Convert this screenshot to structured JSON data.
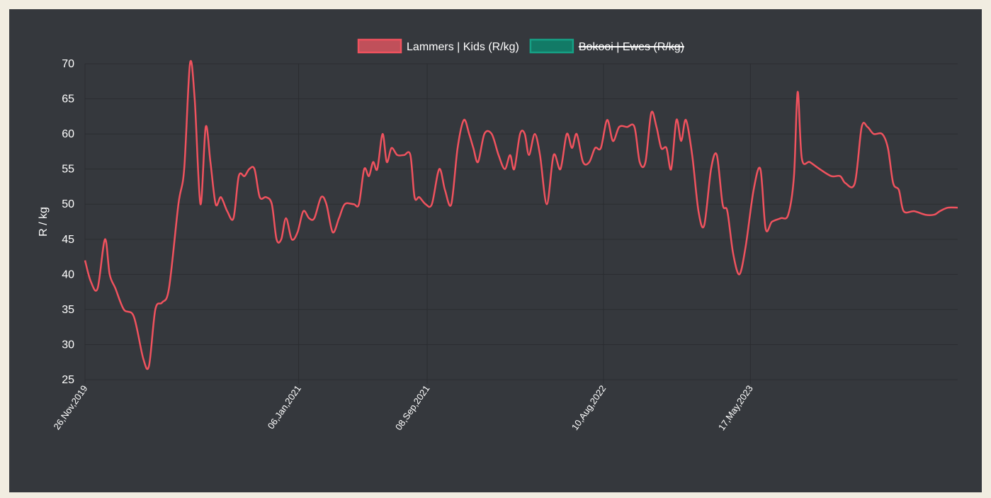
{
  "chart_data": {
    "type": "line",
    "ylabel": "R / kg",
    "xlabel": "",
    "ylim": [
      25,
      70
    ],
    "yticks": [
      25,
      30,
      35,
      40,
      45,
      50,
      55,
      60,
      65,
      70
    ],
    "xlim": [
      "2019-11-26",
      "2024-06-15"
    ],
    "xticks": [
      {
        "date": "2019-11-26",
        "label": "26,Nov,2019"
      },
      {
        "date": "2021-01-06",
        "label": "06,Jan,2021"
      },
      {
        "date": "2021-09-08",
        "label": "08,Sep,2021"
      },
      {
        "date": "2022-08-10",
        "label": "10,Aug,2022"
      },
      {
        "date": "2023-05-17",
        "label": "17,May,2023"
      }
    ],
    "grid": true,
    "legend_position": "top",
    "series": [
      {
        "name": "Lammers | Kids (R/kg)",
        "color": "#f0525e",
        "fill": "#c0505a",
        "hidden": false,
        "points": [
          [
            "2019-11-26",
            42
          ],
          [
            "2019-12-07",
            39
          ],
          [
            "2019-12-20",
            38
          ],
          [
            "2020-01-03",
            45
          ],
          [
            "2020-01-12",
            40
          ],
          [
            "2020-01-23",
            38
          ],
          [
            "2020-02-08",
            35
          ],
          [
            "2020-02-27",
            34
          ],
          [
            "2020-03-16",
            28
          ],
          [
            "2020-03-27",
            27
          ],
          [
            "2020-04-08",
            35
          ],
          [
            "2020-04-21",
            36
          ],
          [
            "2020-05-04",
            38
          ],
          [
            "2020-05-22",
            50
          ],
          [
            "2020-06-02",
            55
          ],
          [
            "2020-06-13",
            70
          ],
          [
            "2020-06-22",
            65
          ],
          [
            "2020-07-03",
            50
          ],
          [
            "2020-07-13",
            61
          ],
          [
            "2020-07-22",
            56
          ],
          [
            "2020-08-01",
            50
          ],
          [
            "2020-08-11",
            51
          ],
          [
            "2020-08-23",
            49
          ],
          [
            "2020-09-04",
            48
          ],
          [
            "2020-09-14",
            54
          ],
          [
            "2020-09-25",
            54
          ],
          [
            "2020-10-04",
            55
          ],
          [
            "2020-10-14",
            55
          ],
          [
            "2020-10-24",
            51
          ],
          [
            "2020-11-05",
            51
          ],
          [
            "2020-11-16",
            50
          ],
          [
            "2020-11-25",
            45
          ],
          [
            "2020-12-04",
            45
          ],
          [
            "2020-12-13",
            48
          ],
          [
            "2020-12-24",
            45
          ],
          [
            "2021-01-04",
            46
          ],
          [
            "2021-01-15",
            49
          ],
          [
            "2021-01-26",
            48
          ],
          [
            "2021-02-05",
            48
          ],
          [
            "2021-02-18",
            51
          ],
          [
            "2021-02-28",
            50
          ],
          [
            "2021-03-12",
            46
          ],
          [
            "2021-03-24",
            48
          ],
          [
            "2021-04-04",
            50
          ],
          [
            "2021-04-21",
            50
          ],
          [
            "2021-05-01",
            50
          ],
          [
            "2021-05-11",
            55
          ],
          [
            "2021-05-20",
            54
          ],
          [
            "2021-05-28",
            56
          ],
          [
            "2021-06-05",
            55
          ],
          [
            "2021-06-15",
            60
          ],
          [
            "2021-06-23",
            56
          ],
          [
            "2021-07-02",
            58
          ],
          [
            "2021-07-13",
            57
          ],
          [
            "2021-07-26",
            57
          ],
          [
            "2021-08-07",
            57
          ],
          [
            "2021-08-15",
            51
          ],
          [
            "2021-08-24",
            51
          ],
          [
            "2021-09-05",
            50
          ],
          [
            "2021-09-17",
            50
          ],
          [
            "2021-10-01",
            55
          ],
          [
            "2021-10-12",
            52
          ],
          [
            "2021-10-24",
            50
          ],
          [
            "2021-11-05",
            58
          ],
          [
            "2021-11-17",
            62
          ],
          [
            "2021-11-27",
            60
          ],
          [
            "2021-12-05",
            58
          ],
          [
            "2021-12-14",
            56
          ],
          [
            "2021-12-26",
            60
          ],
          [
            "2022-01-09",
            60
          ],
          [
            "2022-01-22",
            57
          ],
          [
            "2022-02-03",
            55
          ],
          [
            "2022-02-13",
            57
          ],
          [
            "2022-02-21",
            55
          ],
          [
            "2022-03-04",
            60
          ],
          [
            "2022-03-13",
            60
          ],
          [
            "2022-03-21",
            57
          ],
          [
            "2022-04-01",
            60
          ],
          [
            "2022-04-11",
            57
          ],
          [
            "2022-04-24",
            50
          ],
          [
            "2022-05-07",
            57
          ],
          [
            "2022-05-20",
            55
          ],
          [
            "2022-06-01",
            60
          ],
          [
            "2022-06-11",
            58
          ],
          [
            "2022-06-20",
            60
          ],
          [
            "2022-07-02",
            56
          ],
          [
            "2022-07-14",
            56
          ],
          [
            "2022-07-25",
            58
          ],
          [
            "2022-08-05",
            58
          ],
          [
            "2022-08-17",
            62
          ],
          [
            "2022-08-28",
            59
          ],
          [
            "2022-09-09",
            61
          ],
          [
            "2022-09-24",
            61
          ],
          [
            "2022-10-08",
            61
          ],
          [
            "2022-10-18",
            56
          ],
          [
            "2022-10-29",
            56
          ],
          [
            "2022-11-09",
            63
          ],
          [
            "2022-11-19",
            61
          ],
          [
            "2022-11-28",
            58
          ],
          [
            "2022-12-08",
            58
          ],
          [
            "2022-12-17",
            55
          ],
          [
            "2022-12-27",
            62
          ],
          [
            "2023-01-05",
            59
          ],
          [
            "2023-01-14",
            62
          ],
          [
            "2023-01-26",
            57
          ],
          [
            "2023-02-07",
            49
          ],
          [
            "2023-02-18",
            47
          ],
          [
            "2023-03-03",
            55
          ],
          [
            "2023-03-14",
            57
          ],
          [
            "2023-03-25",
            50
          ],
          [
            "2023-04-03",
            49
          ],
          [
            "2023-04-14",
            43
          ],
          [
            "2023-04-26",
            40
          ],
          [
            "2023-05-08",
            44
          ],
          [
            "2023-05-23",
            52
          ],
          [
            "2023-06-05",
            55
          ],
          [
            "2023-06-15",
            46.5
          ],
          [
            "2023-06-27",
            47.5
          ],
          [
            "2023-07-14",
            48
          ],
          [
            "2023-07-28",
            48.5
          ],
          [
            "2023-08-08",
            54
          ],
          [
            "2023-08-15",
            66
          ],
          [
            "2023-08-23",
            56.5
          ],
          [
            "2023-09-07",
            56
          ],
          [
            "2023-09-26",
            55
          ],
          [
            "2023-10-18",
            54
          ],
          [
            "2023-11-04",
            54
          ],
          [
            "2023-11-14",
            53
          ],
          [
            "2023-12-02",
            53
          ],
          [
            "2023-12-15",
            61
          ],
          [
            "2023-12-26",
            61
          ],
          [
            "2024-01-07",
            60
          ],
          [
            "2024-01-23",
            60
          ],
          [
            "2024-02-03",
            58
          ],
          [
            "2024-02-13",
            53
          ],
          [
            "2024-02-24",
            52
          ],
          [
            "2024-03-04",
            49
          ],
          [
            "2024-03-24",
            49
          ],
          [
            "2024-04-14",
            48.5
          ],
          [
            "2024-05-01",
            48.5
          ],
          [
            "2024-05-12",
            49
          ],
          [
            "2024-05-27",
            49.5
          ],
          [
            "2024-06-15",
            49.5
          ]
        ]
      },
      {
        "name": "Bokooi | Ewes (R/kg)",
        "color": "#16a085",
        "fill": "#127a66",
        "hidden": true,
        "points": []
      }
    ]
  }
}
